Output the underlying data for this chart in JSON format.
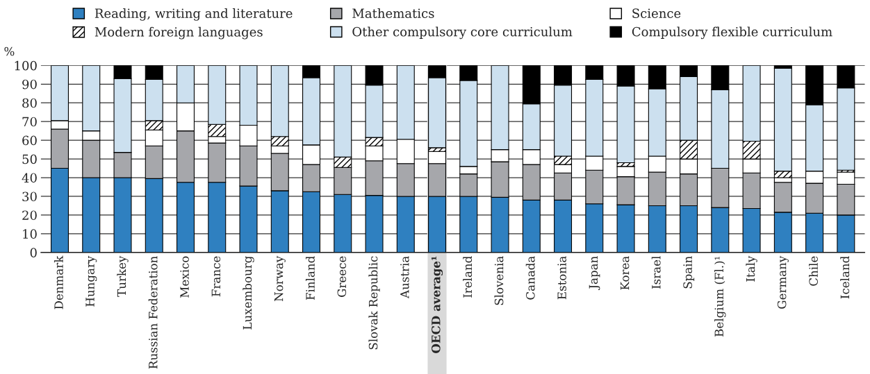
{
  "chart_data": {
    "type": "bar",
    "stacked": true,
    "ylabel": "%",
    "categories": [
      "Denmark",
      "Hungary",
      "Turkey",
      "Russian Federation",
      "Mexico",
      "France",
      "Luxembourg",
      "Norway",
      "Finland",
      "Greece",
      "Slovak Republic",
      "Austria",
      "OECD average¹",
      "Ireland",
      "Slovenia",
      "Canada",
      "Estonia",
      "Japan",
      "Korea",
      "Israel",
      "Spain",
      "Belgium (Fl.)¹",
      "Italy",
      "Germany",
      "Chile",
      "Iceland"
    ],
    "series": [
      {
        "name": "Reading, writing and literature",
        "color": "#2f80c0",
        "values": [
          45,
          40,
          40,
          39.5,
          37.5,
          37.5,
          35.5,
          33,
          32.5,
          31,
          30.5,
          30,
          30,
          30,
          29.5,
          28,
          28,
          26,
          25.5,
          25,
          25,
          24,
          23.5,
          21.5,
          21,
          20
        ]
      },
      {
        "name": "Mathematics",
        "color": "#a6a7ab",
        "values": [
          21,
          20,
          13.5,
          17.5,
          27.5,
          21,
          21.5,
          20,
          14.5,
          14.5,
          18.5,
          17.5,
          17.5,
          12,
          19,
          19,
          14.5,
          18,
          15,
          18,
          17,
          21,
          19,
          16,
          16,
          16.5
        ]
      },
      {
        "name": "Science",
        "color": "#ffffff",
        "values": [
          4.5,
          5,
          0,
          8.5,
          15,
          3.5,
          11,
          4,
          10.5,
          0,
          8,
          13,
          6.5,
          4,
          6.5,
          8,
          4.5,
          7.5,
          5.5,
          8.5,
          8,
          0,
          7.5,
          2.5,
          6.5,
          6.5
        ]
      },
      {
        "name": "Modern foreign languages",
        "color": "#000000",
        "values": [
          0,
          0,
          0,
          5,
          0,
          6.5,
          0,
          5,
          0,
          5.5,
          4.5,
          0,
          2,
          0,
          0,
          0,
          4.5,
          0,
          2,
          0,
          10,
          0,
          9.5,
          3.5,
          0,
          1
        ]
      },
      {
        "name": "Other compulsory core curriculum",
        "color": "#cce0ef",
        "values": [
          29.5,
          35,
          39.5,
          22,
          20,
          31.5,
          32,
          38,
          36,
          49,
          28,
          39.5,
          37.5,
          46,
          45,
          24.5,
          38,
          41,
          41,
          36,
          34,
          42,
          40.5,
          55,
          35.5,
          44
        ]
      },
      {
        "name": "Compulsory flexible curriculum",
        "color": "#000000",
        "values": [
          0,
          0,
          7,
          7.5,
          0,
          0,
          0,
          0,
          6.5,
          0,
          10.5,
          0,
          6.5,
          8,
          0,
          20.5,
          10.5,
          7.5,
          11,
          12.5,
          6,
          13,
          0,
          1.5,
          21,
          12
        ]
      }
    ],
    "ylim": [
      0,
      100
    ],
    "yticks": [
      0,
      10,
      20,
      30,
      40,
      50,
      60,
      70,
      80,
      90,
      100
    ],
    "grid": "y",
    "legend": "top",
    "bands": [
      {
        "axis": "x",
        "from": "OECD average¹",
        "to": "OECD average¹",
        "color": "#d9d9d9"
      }
    ]
  }
}
